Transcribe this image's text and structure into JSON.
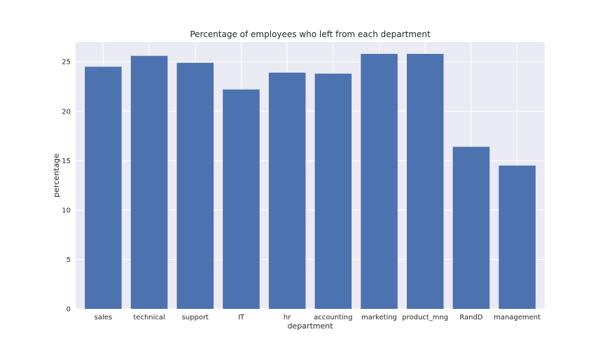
{
  "chart_data": {
    "type": "bar",
    "title": "Percentage of employees who left from each department",
    "xlabel": "department",
    "ylabel": "percentage",
    "categories": [
      "sales",
      "technical",
      "support",
      "IT",
      "hr",
      "accounting",
      "marketing",
      "product_mng",
      "RandD",
      "management"
    ],
    "values": [
      24.5,
      25.6,
      24.9,
      22.2,
      23.9,
      23.8,
      25.8,
      25.8,
      16.4,
      14.5
    ],
    "ylim": [
      0,
      27
    ],
    "yticks": [
      0,
      5,
      10,
      15,
      20,
      25
    ],
    "grid": true,
    "bar_color": "#4c72b0",
    "background_color": "#eaeaf2"
  }
}
